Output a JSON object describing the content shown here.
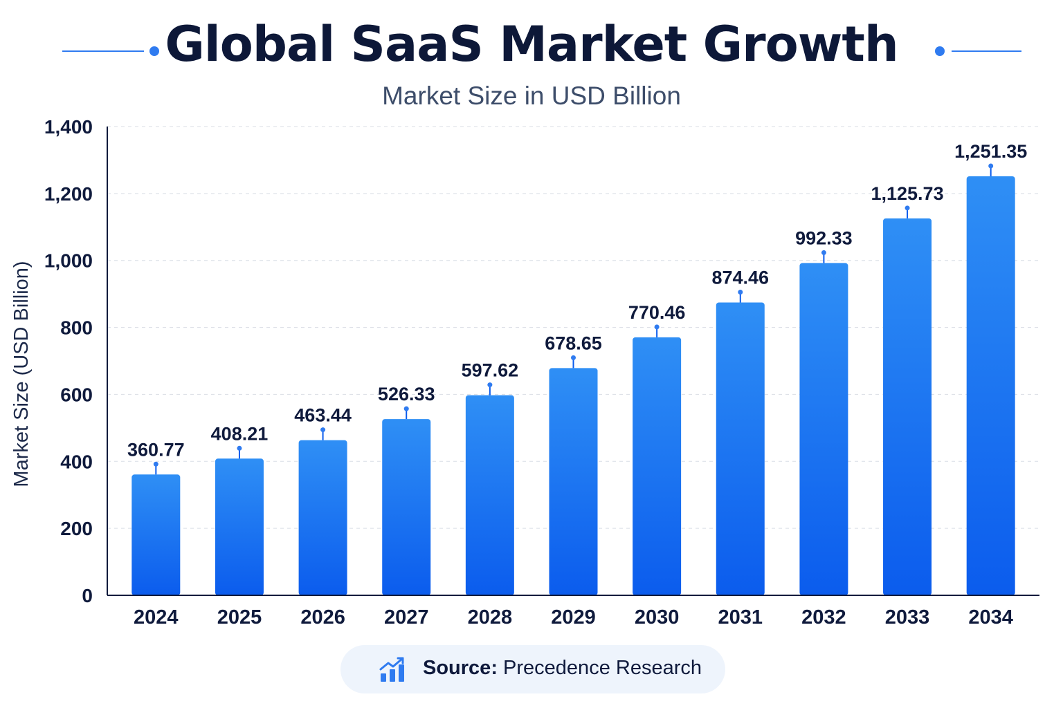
{
  "header": {
    "title": "Global SaaS Market Growth",
    "subtitle": "Market Size in USD Billion"
  },
  "source": {
    "label": "Source:",
    "name": "Precedence Research",
    "icon": "growth-chart-icon"
  },
  "colors": {
    "bar_top": "#2f8ff5",
    "bar_bottom": "#0b5ced",
    "accent": "#2f7bf0",
    "text_dark": "#0f1a3c"
  },
  "chart_data": {
    "type": "bar",
    "title": "Global SaaS Market Growth",
    "subtitle": "Market Size in USD Billion",
    "xlabel": "",
    "ylabel": "Market Size (USD Billion)",
    "ylim": [
      0,
      1400
    ],
    "yticks": [
      0,
      200,
      400,
      600,
      800,
      1000,
      1200,
      1400
    ],
    "ytick_labels": [
      "0",
      "200",
      "400",
      "600",
      "800",
      "1,000",
      "1,200",
      "1,400"
    ],
    "grid": true,
    "categories": [
      "2024",
      "2025",
      "2026",
      "2027",
      "2028",
      "2029",
      "2030",
      "2031",
      "2032",
      "2033",
      "2034"
    ],
    "values": [
      360.77,
      408.21,
      463.44,
      526.33,
      597.62,
      678.65,
      770.46,
      874.46,
      992.33,
      1125.73,
      1251.35
    ],
    "value_labels": [
      "360.77",
      "408.21",
      "463.44",
      "526.33",
      "597.62",
      "678.65",
      "770.46",
      "874.46",
      "992.33",
      "1,125.73",
      "1,251.35"
    ]
  }
}
